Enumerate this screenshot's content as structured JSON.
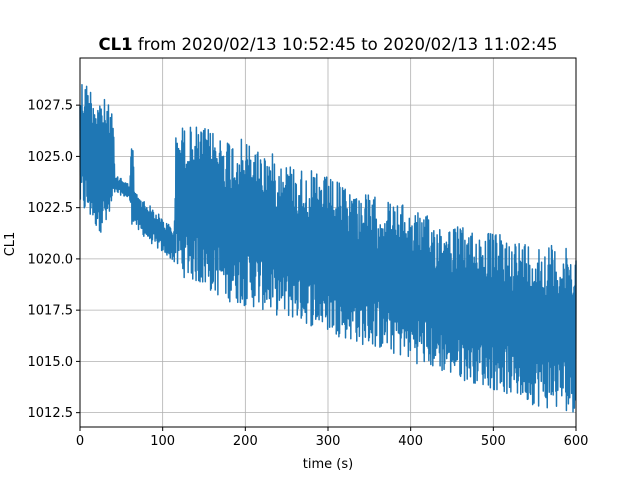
{
  "chart_data": {
    "type": "line",
    "title": {
      "bold": "CL1",
      "rest": " from 2020/02/13 10:52:45 to 2020/02/13 11:02:45"
    },
    "xlabel": "time (s)",
    "ylabel": "CL1",
    "xlim": [
      0,
      600
    ],
    "ylim": [
      1011.8,
      1029.8
    ],
    "xticks": [
      0,
      100,
      200,
      300,
      400,
      500,
      600
    ],
    "xtick_labels": [
      "0",
      "100",
      "200",
      "300",
      "400",
      "500",
      "600"
    ],
    "yticks": [
      1012.5,
      1015.0,
      1017.5,
      1020.0,
      1022.5,
      1025.0,
      1027.5
    ],
    "ytick_labels": [
      "1012.5",
      "1015.0",
      "1017.5",
      "1020.0",
      "1022.5",
      "1025.0",
      "1027.5"
    ],
    "grid": true,
    "series": [
      {
        "color": "#1f77b4",
        "envelope": {
          "x": [
            0,
            10,
            20,
            30,
            35,
            40,
            42,
            50,
            55,
            60,
            63,
            66,
            70,
            80,
            90,
            100,
            110,
            114,
            116,
            120,
            140,
            160,
            180,
            200,
            220,
            240,
            260,
            280,
            300,
            320,
            340,
            360,
            380,
            400,
            420,
            440,
            460,
            480,
            500,
            520,
            540,
            560,
            580,
            600
          ],
          "upper": [
            1029.0,
            1028.6,
            1028.2,
            1027.8,
            1027.5,
            1027.4,
            1024.0,
            1024.0,
            1023.8,
            1023.6,
            1026.4,
            1023.4,
            1023.1,
            1022.8,
            1022.4,
            1022.0,
            1021.6,
            1021.5,
            1026.0,
            1026.5,
            1026.5,
            1026.3,
            1026.0,
            1025.8,
            1025.4,
            1025.0,
            1024.6,
            1024.3,
            1024.0,
            1023.6,
            1023.3,
            1023.0,
            1022.8,
            1022.5,
            1022.1,
            1021.8,
            1021.6,
            1021.4,
            1021.3,
            1021.1,
            1020.9,
            1020.8,
            1020.6,
            1020.4
          ],
          "lower": [
            1022.2,
            1021.9,
            1021.4,
            1021.2,
            1021.4,
            1022.2,
            1023.2,
            1023.1,
            1023.0,
            1022.9,
            1021.6,
            1021.8,
            1021.3,
            1021.0,
            1020.6,
            1020.3,
            1020.0,
            1019.8,
            1019.4,
            1019.2,
            1018.8,
            1018.3,
            1017.9,
            1017.7,
            1017.5,
            1017.2,
            1017.0,
            1016.7,
            1016.4,
            1016.1,
            1015.8,
            1015.6,
            1015.3,
            1015.0,
            1014.7,
            1014.4,
            1014.1,
            1013.9,
            1013.6,
            1013.3,
            1013.0,
            1012.7,
            1012.6,
            1012.5
          ]
        }
      }
    ]
  }
}
